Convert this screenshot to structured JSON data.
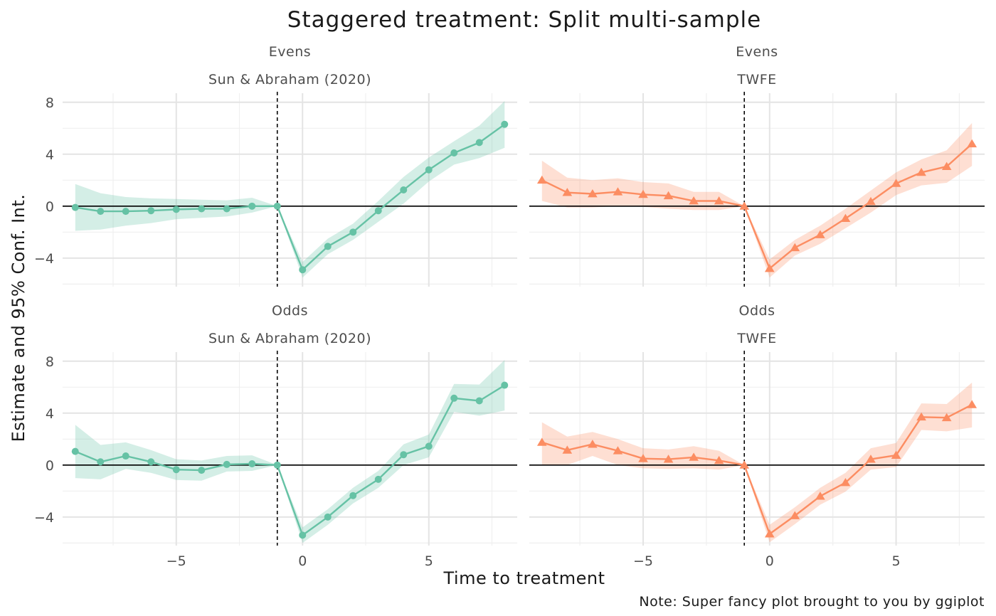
{
  "title": "Staggered treatment: Split multi-sample",
  "xlabel": "Time to treatment",
  "ylabel": "Estimate and 95% Conf. Int.",
  "caption": "Note: Super fancy plot brought to you by ggiplot",
  "colors": {
    "sunab": "#66C2A5",
    "twfe": "#FC8D62",
    "ci_opacity": 0.28
  },
  "chart_data": [
    {
      "type": "line",
      "sample": "Evens",
      "method": "Sun & Abraham (2020)",
      "color": "#66C2A5",
      "marker": "circle",
      "xlim": [
        -9.5,
        8.5
      ],
      "ylim": [
        -6.2,
        8.7
      ],
      "xticks": [
        -5,
        0,
        5
      ],
      "yticks": [
        -4,
        0,
        4,
        8
      ],
      "ref_line_x": -1,
      "ref_line_y": 0,
      "x": [
        -9,
        -8,
        -7,
        -6,
        -5,
        -4,
        -3,
        -2,
        -1,
        0,
        1,
        2,
        3,
        4,
        5,
        6,
        7,
        8
      ],
      "y": [
        -0.1,
        -0.4,
        -0.4,
        -0.35,
        -0.25,
        -0.2,
        -0.2,
        0.0,
        0.0,
        -4.9,
        -3.1,
        -2.0,
        -0.35,
        1.25,
        2.8,
        4.1,
        4.9,
        6.3
      ],
      "ci_low": [
        -1.9,
        -1.8,
        -1.5,
        -1.3,
        -1.0,
        -0.9,
        -0.8,
        -0.5,
        0.0,
        -5.5,
        -3.7,
        -2.6,
        -1.2,
        0.2,
        1.9,
        3.2,
        3.7,
        4.5
      ],
      "ci_high": [
        1.7,
        1.0,
        0.7,
        0.6,
        0.55,
        0.5,
        0.45,
        0.65,
        0.0,
        -4.3,
        -2.5,
        -1.35,
        0.4,
        2.25,
        3.75,
        5.0,
        6.2,
        8.1
      ]
    },
    {
      "type": "line",
      "sample": "Evens",
      "method": "TWFE",
      "color": "#FC8D62",
      "marker": "triangle",
      "xlim": [
        -9.5,
        8.5
      ],
      "ylim": [
        -6.2,
        8.7
      ],
      "xticks": [
        -5,
        0,
        5
      ],
      "yticks": [
        -4,
        0,
        4,
        8
      ],
      "ref_line_x": -1,
      "ref_line_y": 0,
      "x": [
        -9,
        -8,
        -7,
        -6,
        -5,
        -4,
        -3,
        -2,
        -1,
        0,
        1,
        2,
        3,
        4,
        5,
        6,
        7,
        8
      ],
      "y": [
        2.0,
        1.05,
        0.95,
        1.1,
        0.9,
        0.8,
        0.4,
        0.4,
        0.0,
        -4.8,
        -3.2,
        -2.2,
        -0.95,
        0.35,
        1.75,
        2.6,
        3.05,
        4.8
      ],
      "ci_low": [
        0.4,
        -0.1,
        -0.1,
        0.0,
        -0.05,
        -0.2,
        -0.3,
        -0.3,
        0.0,
        -5.5,
        -3.8,
        -2.9,
        -1.7,
        -0.5,
        0.85,
        1.6,
        1.8,
        3.1
      ],
      "ci_high": [
        3.5,
        2.2,
        2.0,
        2.15,
        1.85,
        1.75,
        1.1,
        1.1,
        0.0,
        -4.1,
        -2.6,
        -1.5,
        -0.2,
        1.2,
        2.6,
        3.6,
        4.3,
        6.4
      ]
    },
    {
      "type": "line",
      "sample": "Odds",
      "method": "Sun & Abraham (2020)",
      "color": "#66C2A5",
      "marker": "circle",
      "xlim": [
        -9.5,
        8.5
      ],
      "ylim": [
        -6.2,
        8.7
      ],
      "xticks": [
        -5,
        0,
        5
      ],
      "yticks": [
        -4,
        0,
        4,
        8
      ],
      "ref_line_x": -1,
      "ref_line_y": 0,
      "x": [
        -9,
        -8,
        -7,
        -6,
        -5,
        -4,
        -3,
        -2,
        -1,
        0,
        1,
        2,
        3,
        4,
        5,
        6,
        7,
        8
      ],
      "y": [
        1.05,
        0.25,
        0.7,
        0.25,
        -0.35,
        -0.4,
        0.05,
        0.1,
        0.0,
        -5.4,
        -4.0,
        -2.35,
        -1.1,
        0.8,
        1.45,
        5.15,
        4.95,
        6.15
      ],
      "ci_low": [
        -1.0,
        -1.1,
        -0.3,
        -0.6,
        -1.15,
        -1.2,
        -0.5,
        -0.45,
        0.0,
        -6.0,
        -4.6,
        -2.95,
        -1.75,
        0.0,
        0.6,
        4.1,
        3.8,
        4.2
      ],
      "ci_high": [
        3.1,
        1.55,
        1.75,
        1.15,
        0.45,
        0.35,
        0.7,
        0.75,
        0.0,
        -4.8,
        -3.4,
        -1.75,
        -0.45,
        1.6,
        2.35,
        6.25,
        6.2,
        8.1
      ]
    },
    {
      "type": "line",
      "sample": "Odds",
      "method": "TWFE",
      "color": "#FC8D62",
      "marker": "triangle",
      "xlim": [
        -9.5,
        8.5
      ],
      "ylim": [
        -6.2,
        8.7
      ],
      "xticks": [
        -5,
        0,
        5
      ],
      "yticks": [
        -4,
        0,
        4,
        8
      ],
      "ref_line_x": -1,
      "ref_line_y": 0,
      "x": [
        -9,
        -8,
        -7,
        -6,
        -5,
        -4,
        -3,
        -2,
        -1,
        0,
        1,
        2,
        3,
        4,
        5,
        6,
        7,
        8
      ],
      "y": [
        1.75,
        1.15,
        1.6,
        1.1,
        0.5,
        0.45,
        0.6,
        0.35,
        0.0,
        -5.3,
        -3.9,
        -2.4,
        -1.35,
        0.45,
        0.75,
        3.7,
        3.65,
        4.65
      ],
      "ci_low": [
        0.0,
        0.0,
        0.7,
        0.0,
        -0.25,
        -0.3,
        -0.25,
        -0.35,
        0.0,
        -5.95,
        -4.55,
        -3.05,
        -2.05,
        -0.35,
        -0.15,
        2.7,
        2.6,
        2.9
      ],
      "ci_high": [
        3.3,
        2.2,
        2.55,
        2.0,
        1.3,
        1.2,
        1.45,
        1.1,
        0.0,
        -4.6,
        -3.25,
        -1.75,
        -0.6,
        1.3,
        1.7,
        4.75,
        4.7,
        6.35
      ]
    }
  ]
}
